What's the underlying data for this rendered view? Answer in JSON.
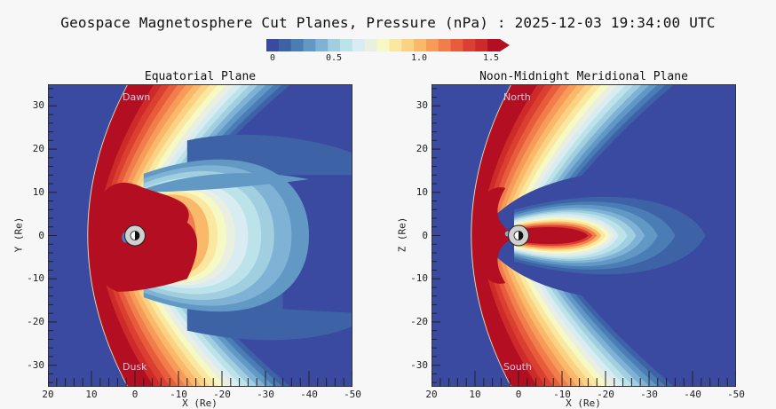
{
  "chart_data": {
    "type": "heatmap",
    "title": "Geospace Magnetosphere Cut Planes, Pressure (nPa) : 2025-12-03 19:34:00 UTC",
    "colorbar": {
      "ticks": [
        "0",
        "0.5",
        "1.0",
        "1.5"
      ],
      "range": [
        0,
        1.5
      ],
      "extend": "max",
      "levels": 19,
      "colors": [
        "#3a4aa0",
        "#3d62a6",
        "#4a7cb6",
        "#6198c4",
        "#7fb2d5",
        "#a1cfe0",
        "#bde3ea",
        "#d8ecf1",
        "#e9f0e2",
        "#f6f9c4",
        "#fae8a0",
        "#fbd284",
        "#fab86a",
        "#f69b59",
        "#f07d4b",
        "#e75d3c",
        "#db3f31",
        "#cd2a29",
        "#b40e22"
      ]
    },
    "panels": [
      {
        "title": "Equatorial Plane",
        "xlabel": "X (Re)",
        "ylabel": "Y (Re)",
        "xlim": [
          20,
          -50
        ],
        "ylim": [
          -35,
          35
        ],
        "xticks": [
          "20",
          "10",
          "0",
          "-10",
          "-20",
          "-30",
          "-40",
          "-50"
        ],
        "yticks": [
          "30",
          "20",
          "10",
          "0",
          "-10",
          "-20",
          "-30"
        ],
        "region_labels": {
          "top": "Dawn",
          "bottom": "Dusk"
        }
      },
      {
        "title": "Noon-Midnight Meridional Plane",
        "xlabel": "X (Re)",
        "ylabel": "Z (Re)",
        "xlim": [
          20,
          -50
        ],
        "ylim": [
          -35,
          35
        ],
        "xticks": [
          "20",
          "10",
          "0",
          "-10",
          "-20",
          "-30",
          "-40",
          "-50"
        ],
        "yticks": [
          "30",
          "20",
          "10",
          "0",
          "-10",
          "-20",
          "-30"
        ],
        "region_labels": {
          "top": "North",
          "bottom": "South"
        }
      }
    ]
  }
}
